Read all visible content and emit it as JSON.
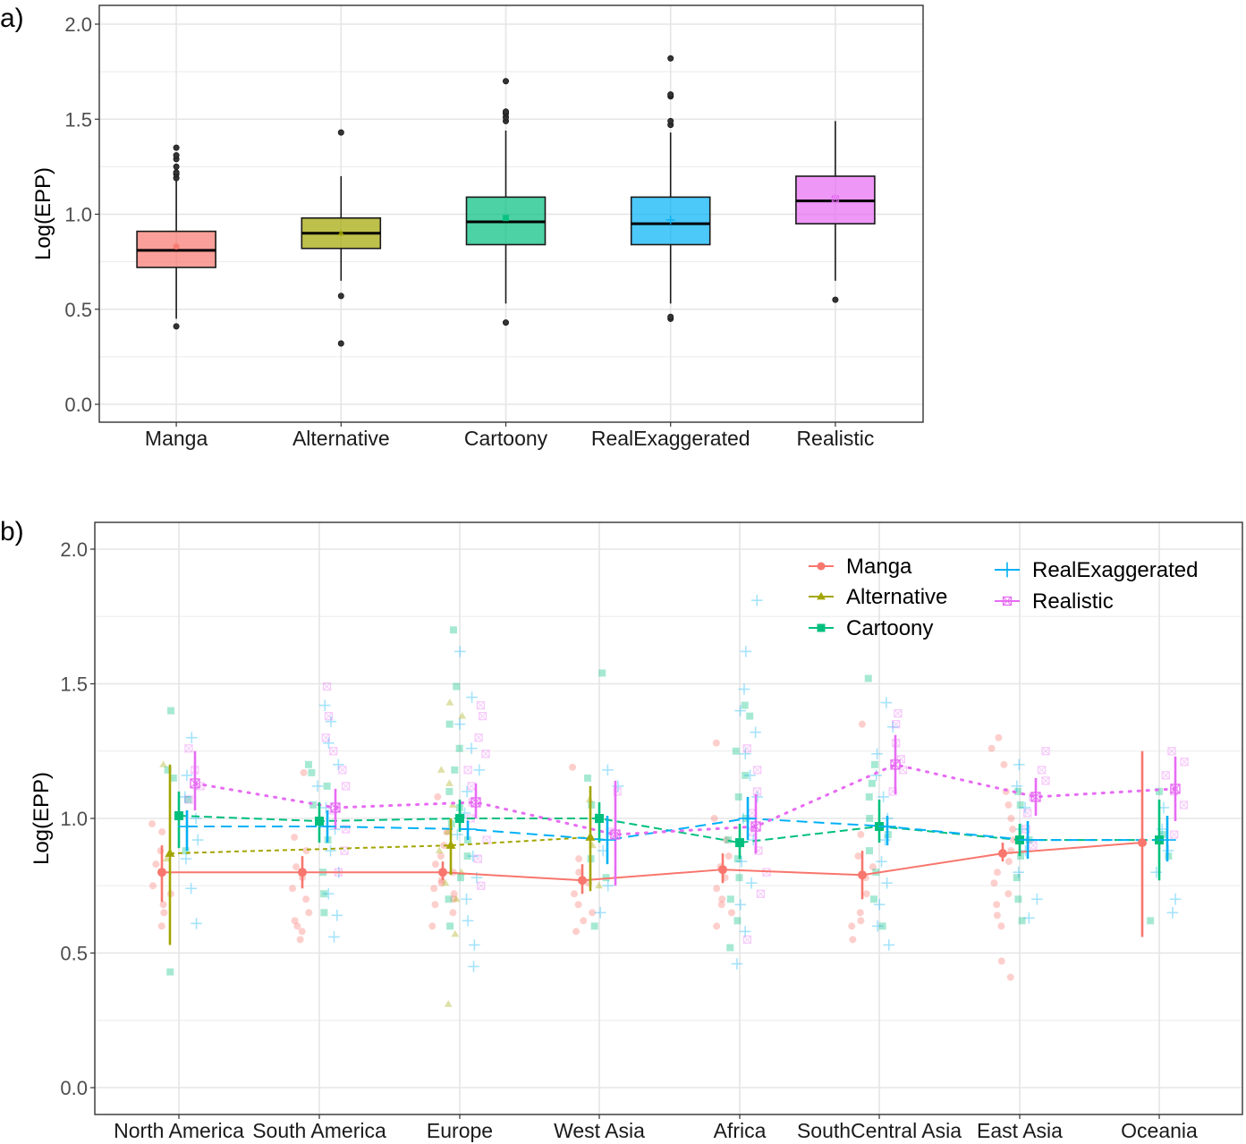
{
  "chart_data": [
    {
      "panel_label": "a)",
      "type": "box",
      "xlabel": "",
      "ylabel": "Log(EPP)",
      "ylim": [
        -0.05,
        2.1
      ],
      "yticks": [
        0.0,
        0.5,
        1.0,
        1.5,
        2.0
      ],
      "ytick_labels": [
        "0.0",
        "0.5",
        "1.0",
        "1.5",
        "2.0"
      ],
      "grid": true,
      "categories": [
        "Manga",
        "Alternative",
        "Cartoony",
        "RealExaggerated",
        "Realistic"
      ],
      "boxes": [
        {
          "name": "Manga",
          "color": "#f8766d",
          "q1": 0.72,
          "median": 0.81,
          "q3": 0.91,
          "whisker_low": 0.45,
          "whisker_high": 1.18,
          "mean": 0.83,
          "mean_marker": "circle",
          "outliers": [
            1.19,
            1.21,
            1.22,
            1.25,
            1.29,
            1.31,
            1.35,
            0.41
          ]
        },
        {
          "name": "Alternative",
          "color": "#a3a500",
          "q1": 0.82,
          "median": 0.9,
          "q3": 0.98,
          "whisker_low": 0.65,
          "whisker_high": 1.2,
          "mean": 0.9,
          "mean_marker": "triangle",
          "outliers": [
            1.43,
            0.57,
            0.32
          ]
        },
        {
          "name": "Cartoony",
          "color": "#00bf7d",
          "q1": 0.84,
          "median": 0.96,
          "q3": 1.09,
          "whisker_low": 0.53,
          "whisker_high": 1.44,
          "mean": 0.98,
          "mean_marker": "square",
          "outliers": [
            1.7,
            1.49,
            1.51,
            1.53,
            1.54,
            0.43
          ]
        },
        {
          "name": "RealExaggerated",
          "color": "#00b0f6",
          "q1": 0.84,
          "median": 0.95,
          "q3": 1.09,
          "whisker_low": 0.53,
          "whisker_high": 1.43,
          "mean": 0.97,
          "mean_marker": "plus",
          "outliers": [
            1.82,
            1.62,
            1.63,
            1.47,
            1.49,
            0.45,
            0.46
          ]
        },
        {
          "name": "Realistic",
          "color": "#e76bf3",
          "q1": 0.95,
          "median": 1.07,
          "q3": 1.2,
          "whisker_low": 0.65,
          "whisker_high": 1.49,
          "mean": 1.08,
          "mean_marker": "square-x",
          "outliers": [
            0.55
          ]
        }
      ]
    },
    {
      "panel_label": "b)",
      "type": "line",
      "xlabel": "",
      "ylabel": "Log(EPP)",
      "ylim": [
        -0.1,
        2.1
      ],
      "yticks": [
        0.0,
        0.5,
        1.0,
        1.5,
        2.0
      ],
      "ytick_labels": [
        "0.0",
        "0.5",
        "1.0",
        "1.5",
        "2.0"
      ],
      "grid": true,
      "legend_position": "top-right",
      "categories": [
        "North America",
        "South America",
        "Europe",
        "West Asia",
        "Africa",
        "SouthCentral Asia",
        "East Asia",
        "Oceania"
      ],
      "series": [
        {
          "name": "Manga",
          "color": "#f8766d",
          "marker": "circle",
          "linestyle": "solid",
          "means": [
            0.8,
            0.8,
            0.8,
            0.77,
            0.81,
            0.79,
            0.87,
            0.91
          ],
          "lower": [
            0.69,
            0.74,
            0.77,
            0.72,
            0.76,
            0.7,
            0.84,
            0.56
          ],
          "upper": [
            0.9,
            0.86,
            0.84,
            0.83,
            0.87,
            0.88,
            0.91,
            1.25
          ]
        },
        {
          "name": "Alternative",
          "color": "#a3a500",
          "marker": "triangle",
          "linestyle": "dotted-dash",
          "means": [
            0.87,
            null,
            0.9,
            0.93,
            null,
            null,
            null,
            null
          ],
          "lower": [
            0.53,
            null,
            0.79,
            0.73,
            null,
            null,
            null,
            null
          ],
          "upper": [
            1.2,
            null,
            1.0,
            1.12,
            null,
            null,
            null,
            null
          ]
        },
        {
          "name": "Cartoony",
          "color": "#00bf7d",
          "marker": "square",
          "linestyle": "dashed",
          "means": [
            1.01,
            0.99,
            1.0,
            1.0,
            0.91,
            0.97,
            0.92,
            0.92
          ],
          "lower": [
            0.89,
            0.91,
            0.95,
            0.91,
            0.85,
            0.91,
            0.86,
            0.77
          ],
          "upper": [
            1.1,
            1.06,
            1.07,
            1.06,
            0.98,
            1.07,
            0.98,
            1.07
          ]
        },
        {
          "name": "RealExaggerated",
          "color": "#00b0f6",
          "marker": "plus",
          "linestyle": "long-dash",
          "means": [
            0.97,
            0.97,
            0.96,
            0.92,
            1.0,
            0.97,
            0.92,
            0.92
          ],
          "lower": [
            0.88,
            0.91,
            0.92,
            0.83,
            0.92,
            0.9,
            0.85,
            0.84
          ],
          "upper": [
            1.03,
            1.03,
            0.99,
            1.01,
            1.08,
            1.01,
            0.99,
            1.01
          ]
        },
        {
          "name": "Realistic",
          "color": "#e76bf3",
          "marker": "square-x",
          "linestyle": "dotted",
          "means": [
            1.13,
            1.04,
            1.06,
            0.94,
            0.97,
            1.2,
            1.08,
            1.11
          ],
          "lower": [
            1.03,
            0.96,
            1.0,
            0.75,
            0.87,
            1.09,
            1.01,
            0.99
          ],
          "upper": [
            1.25,
            1.11,
            1.13,
            1.14,
            1.09,
            1.31,
            1.15,
            1.23
          ]
        }
      ],
      "raw_points_note": "semi-transparent jittered individual observations per category and style",
      "raw_points": {
        "Manga": [
          [
            0.6,
            0.68,
            0.75,
            0.83,
            0.88,
            0.95,
            0.98,
            0.72,
            0.65
          ],
          [
            0.55,
            0.6,
            0.65,
            0.7,
            0.74,
            0.78,
            0.82,
            0.88,
            0.93,
            1.17,
            0.58,
            0.62
          ],
          [
            0.6,
            0.65,
            0.7,
            0.74,
            0.77,
            0.8,
            0.83,
            0.86,
            0.9,
            0.95,
            1.08,
            0.68,
            0.72,
            0.76
          ],
          [
            0.58,
            0.62,
            0.68,
            0.72,
            0.76,
            0.8,
            0.85,
            1.19,
            0.65
          ],
          [
            0.6,
            0.65,
            0.7,
            0.74,
            0.78,
            0.82,
            0.86,
            0.92,
            1.0,
            1.28,
            0.68
          ],
          [
            0.55,
            0.6,
            0.65,
            0.72,
            0.78,
            0.82,
            0.86,
            0.94,
            1.35,
            0.62
          ],
          [
            0.41,
            0.47,
            0.6,
            0.64,
            0.68,
            0.72,
            0.76,
            0.8,
            0.84,
            0.88,
            0.92,
            0.96,
            1.0,
            1.05,
            1.1,
            1.2,
            1.26,
            1.3
          ],
          []
        ],
        "Alternative": [
          [
            0.85,
            1.2
          ],
          [],
          [
            0.31,
            0.57,
            0.7,
            0.76,
            0.8,
            0.88,
            0.95,
            1.05,
            1.13,
            1.18,
            1.38,
            1.43
          ],
          [
            0.75,
            0.9,
            1.07
          ],
          [],
          [],
          [],
          []
        ],
        "Cartoony": [
          [
            0.43,
            0.88,
            1.07,
            1.15,
            1.18,
            1.4
          ],
          [
            0.65,
            0.72,
            0.8,
            0.92,
            1.05,
            1.12,
            1.17,
            1.2
          ],
          [
            0.6,
            0.7,
            0.78,
            0.86,
            0.92,
            0.98,
            1.04,
            1.1,
            1.18,
            1.26,
            1.35,
            1.49,
            1.7
          ],
          [
            0.6,
            0.78,
            0.85,
            1.05,
            1.15,
            1.54
          ],
          [
            0.52,
            0.62,
            0.7,
            0.78,
            0.85,
            0.92,
            1.0,
            1.08,
            1.16,
            1.25,
            1.38,
            1.42
          ],
          [
            0.6,
            0.7,
            0.8,
            0.88,
            0.94,
            1.0,
            1.08,
            1.13,
            1.2,
            1.52
          ],
          [
            0.62,
            0.7,
            0.78,
            0.86,
            0.92,
            1.05,
            1.1
          ],
          [
            0.62,
            0.86,
            0.94,
            1.1
          ]
        ],
        "RealExaggerated": [
          [
            0.61,
            0.74,
            0.85,
            0.92,
            1.0,
            1.08,
            1.16,
            1.3
          ],
          [
            0.56,
            0.64,
            0.72,
            0.8,
            0.88,
            0.96,
            1.04,
            1.12,
            1.2,
            1.28,
            1.36,
            1.42
          ],
          [
            0.45,
            0.53,
            0.62,
            0.7,
            0.78,
            0.86,
            0.94,
            1.02,
            1.1,
            1.18,
            1.26,
            1.35,
            1.45,
            1.62
          ],
          [
            0.65,
            0.75,
            0.88,
            1.0,
            1.12,
            1.18
          ],
          [
            0.46,
            0.58,
            0.68,
            0.76,
            0.84,
            0.92,
            1.0,
            1.08,
            1.16,
            1.24,
            1.32,
            1.4,
            1.48,
            1.62,
            1.81
          ],
          [
            0.53,
            0.6,
            0.68,
            0.76,
            0.84,
            0.92,
            1.0,
            1.08,
            1.16,
            1.24,
            1.34,
            1.43
          ],
          [
            0.63,
            0.7,
            0.8,
            0.88,
            0.96,
            1.04,
            1.12,
            1.2
          ],
          [
            0.65,
            0.7,
            0.8,
            0.88,
            0.96,
            1.04
          ]
        ],
        "Realistic": [
          [
            1.07,
            1.12,
            1.18,
            1.26
          ],
          [
            0.8,
            0.88,
            0.96,
            1.03,
            1.12,
            1.18,
            1.25,
            1.3,
            1.38,
            1.49
          ],
          [
            0.75,
            0.85,
            0.92,
            1.0,
            1.06,
            1.12,
            1.18,
            1.24,
            1.3,
            1.38,
            1.42
          ],
          [
            0.95,
            1.1
          ],
          [
            0.55,
            0.72,
            0.8,
            0.88,
            0.95,
            1.02,
            1.1,
            1.18,
            1.26
          ],
          [
            1.1,
            1.18,
            1.22,
            1.28,
            1.35,
            1.39
          ],
          [
            0.9,
            0.96,
            1.02,
            1.08,
            1.14,
            1.18,
            1.25
          ],
          [
            0.94,
            1.05,
            1.1,
            1.16,
            1.21,
            1.25
          ]
        ]
      }
    }
  ]
}
